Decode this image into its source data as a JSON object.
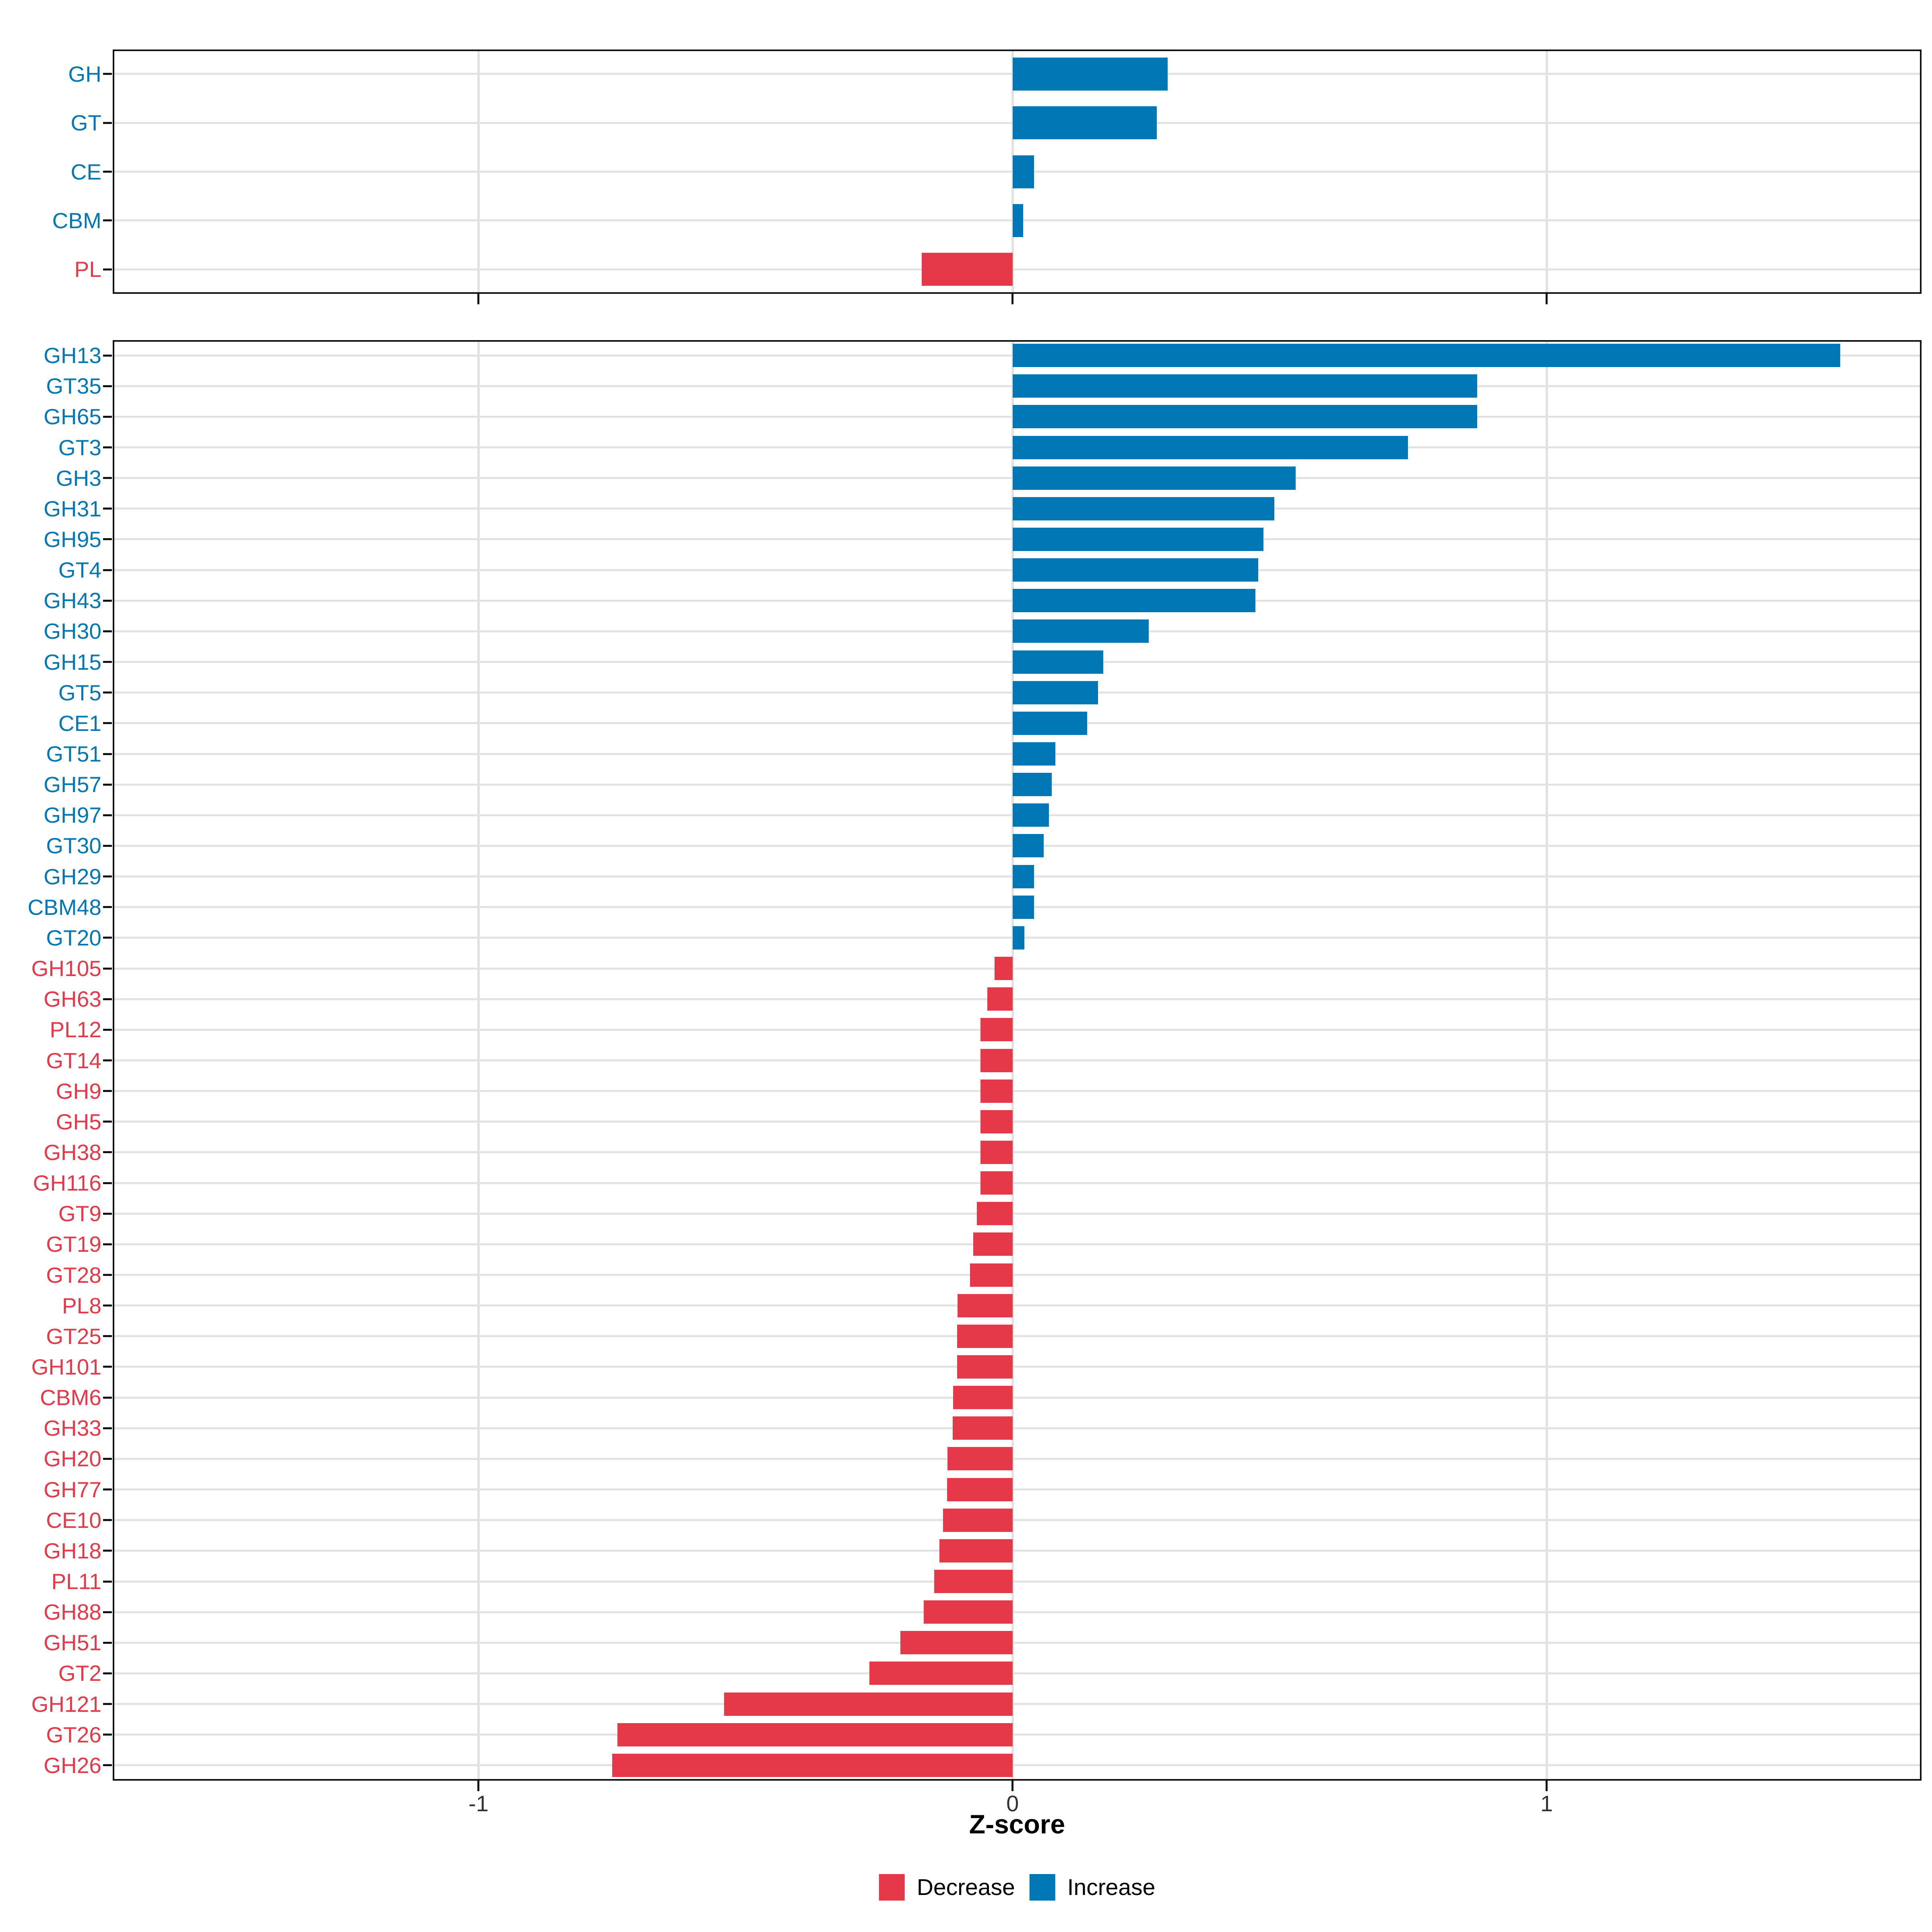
{
  "figure": {
    "xlabel": "Z-score",
    "x_tick_labels": [
      "-1",
      "0",
      "1"
    ],
    "legend": {
      "decrease_label": "Decrease",
      "increase_label": "Increase"
    }
  },
  "colors": {
    "increase": "#0277B5",
    "decrease": "#E53848",
    "gridline": "#E2E2E2",
    "panel_border": "#111111",
    "tick_mark": "#111111",
    "tick_label_text": "#333333",
    "axis_title_text": "#000000",
    "background": "#FFFFFF"
  },
  "chart_data": [
    {
      "type": "bar",
      "orientation": "horizontal",
      "panel": "top-cazyme-classes",
      "categories": [
        "GH",
        "GT",
        "CE",
        "CBM",
        "PL"
      ],
      "values": [
        0.29,
        0.27,
        0.04,
        0.02,
        -0.17
      ],
      "color_rule": "value >= 0 -> increase (blue), value < 0 -> decrease (red)",
      "xlabel": "Z-score",
      "x_ticks": [
        -1,
        0,
        1
      ],
      "xlim": [
        -1.685,
        1.702
      ],
      "grid": true,
      "legend_position": "bottom"
    },
    {
      "type": "bar",
      "orientation": "horizontal",
      "panel": "bottom-cazyme-families",
      "categories": [
        "GH13",
        "GT35",
        "GH65",
        "GT3",
        "GH3",
        "GH31",
        "GH95",
        "GT4",
        "GH43",
        "GH30",
        "GH15",
        "GT5",
        "CE1",
        "GT51",
        "GH57",
        "GH97",
        "GT30",
        "GH29",
        "CBM48",
        "GT20",
        "GH105",
        "GH63",
        "PL12",
        "GT14",
        "GH9",
        "GH5",
        "GH38",
        "GH116",
        "GT9",
        "GT19",
        "GT28",
        "PL8",
        "GT25",
        "GH101",
        "CBM6",
        "GH33",
        "GH20",
        "GH77",
        "CE10",
        "GH18",
        "PL11",
        "GH88",
        "GH51",
        "GT2",
        "GH121",
        "GT26",
        "GH26"
      ],
      "values": [
        1.55,
        0.87,
        0.87,
        0.74,
        0.53,
        0.49,
        0.47,
        0.46,
        0.455,
        0.255,
        0.17,
        0.16,
        0.14,
        0.08,
        0.073,
        0.068,
        0.058,
        0.04,
        0.04,
        0.022,
        -0.034,
        -0.047,
        -0.06,
        -0.06,
        -0.06,
        -0.06,
        -0.06,
        -0.06,
        -0.067,
        -0.074,
        -0.08,
        -0.103,
        -0.104,
        -0.104,
        -0.111,
        -0.112,
        -0.122,
        -0.123,
        -0.13,
        -0.137,
        -0.147,
        -0.166,
        -0.21,
        -0.268,
        -0.54,
        -0.74,
        -0.75
      ],
      "color_rule": "value >= 0 -> increase (blue), value < 0 -> decrease (red)",
      "xlabel": "Z-score",
      "x_ticks": [
        -1,
        0,
        1
      ],
      "xlim": [
        -1.685,
        1.702
      ],
      "grid": true,
      "legend_position": "bottom"
    }
  ]
}
